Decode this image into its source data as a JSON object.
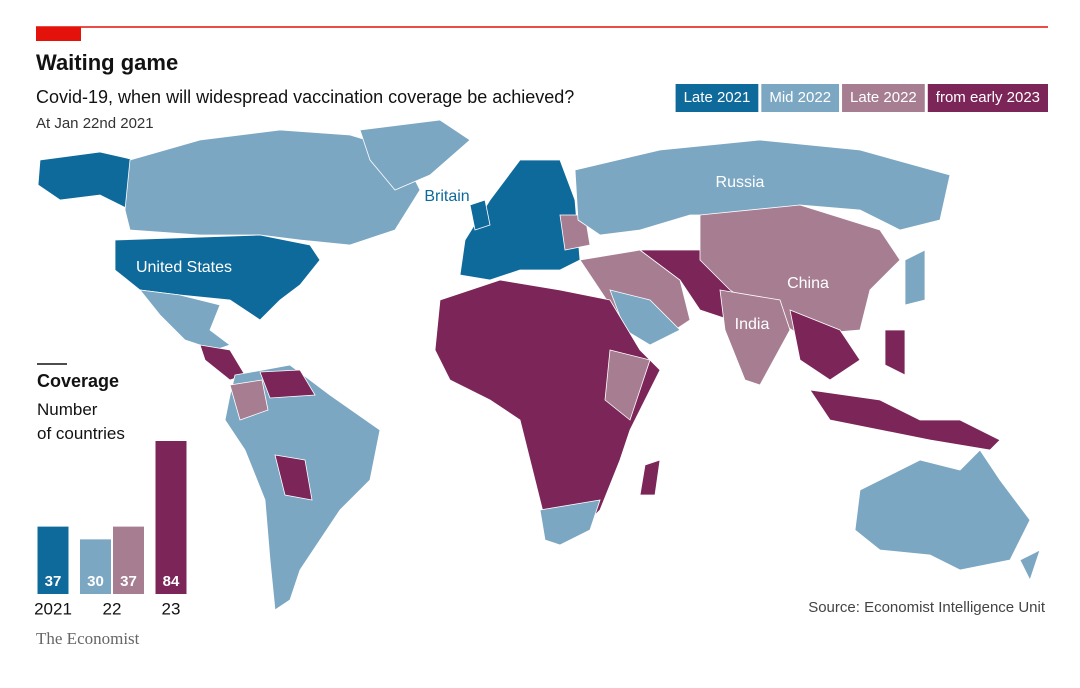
{
  "header": {
    "title": "Waiting game",
    "subtitle": "Covid-19, when will widespread vaccination coverage be achieved?",
    "date": "At Jan 22nd 2021"
  },
  "map": {
    "labels": [
      "Britain",
      "Russia",
      "United States",
      "China",
      "India"
    ]
  },
  "chart_data": {
    "type": "bar",
    "title": "Coverage",
    "subtitle": "Number of countries",
    "categories": [
      "2021",
      "22",
      "23"
    ],
    "series": [
      {
        "name": "Late 2021",
        "color": "#0f6a9c",
        "values": [
          37,
          null,
          null
        ]
      },
      {
        "name": "Mid 2022",
        "color": "#7ba7c3",
        "values": [
          null,
          30,
          null
        ]
      },
      {
        "name": "Late 2022",
        "color": "#a77e91",
        "values": [
          null,
          37,
          null
        ]
      },
      {
        "name": "from early 2023",
        "color": "#7b2558",
        "values": [
          null,
          null,
          84
        ]
      }
    ]
  },
  "footer": {
    "source": "Source: Economist Intelligence Unit",
    "brand": "The Economist"
  }
}
